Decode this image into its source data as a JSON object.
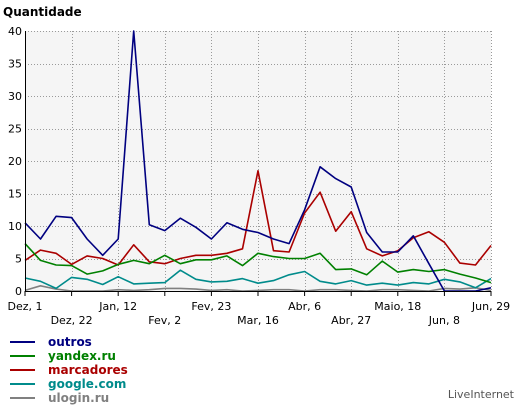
{
  "chart_data": {
    "type": "line",
    "title": "Quantidade",
    "ylim": [
      0,
      40
    ],
    "yticks": [
      0,
      5,
      10,
      15,
      20,
      25,
      30,
      35,
      40
    ],
    "x_tick_labels": [
      {
        "label": "Dez, 1",
        "index": 0,
        "row": 1
      },
      {
        "label": "Dez, 22",
        "index": 3,
        "row": 2
      },
      {
        "label": "Jan, 12",
        "index": 6,
        "row": 1
      },
      {
        "label": "Fev, 2",
        "index": 9,
        "row": 2
      },
      {
        "label": "Fev, 23",
        "index": 12,
        "row": 1
      },
      {
        "label": "Mar, 16",
        "index": 15,
        "row": 2
      },
      {
        "label": "Abr, 6",
        "index": 18,
        "row": 1
      },
      {
        "label": "Abr, 27",
        "index": 21,
        "row": 2
      },
      {
        "label": "Maio, 18",
        "index": 24,
        "row": 1
      },
      {
        "label": "Jun, 8",
        "index": 27,
        "row": 2
      },
      {
        "label": "Jun, 29",
        "index": 30,
        "row": 1
      }
    ],
    "grid": true,
    "series": [
      {
        "name": "outros",
        "color": "#000080",
        "values": [
          10.5,
          8,
          11.5,
          11.3,
          8,
          5.5,
          8,
          40,
          10.2,
          9.3,
          11.2,
          9.8,
          8,
          10.5,
          9.5,
          9,
          8,
          7.3,
          12.5,
          19.1,
          17.3,
          16,
          9,
          6,
          6,
          8.5,
          4.2,
          0,
          0,
          0,
          0.5
        ]
      },
      {
        "name": "yandex.ru",
        "color": "#008000",
        "values": [
          7.3,
          4.7,
          4,
          3.9,
          2.6,
          3.1,
          4.1,
          4.7,
          4.2,
          5.5,
          4.2,
          4.8,
          4.8,
          5.4,
          3.9,
          5.8,
          5.3,
          5,
          5,
          5.8,
          3.3,
          3.4,
          2.5,
          4.6,
          2.9,
          3.3,
          3,
          3.3,
          2.6,
          2,
          1.3
        ]
      },
      {
        "name": "marcadores",
        "color": "#aa0000",
        "values": [
          4.7,
          6.3,
          5.8,
          4.1,
          5.4,
          5,
          4,
          7.1,
          4.5,
          4.2,
          5,
          5.5,
          5.5,
          5.8,
          6.5,
          18.5,
          6.2,
          6,
          12,
          15.2,
          9.2,
          12.2,
          6.5,
          5.4,
          6.2,
          8.2,
          9.1,
          7.5,
          4.3,
          4,
          7
        ]
      },
      {
        "name": "google.com",
        "color": "#008b8b",
        "values": [
          2,
          1.5,
          0.4,
          2.1,
          1.8,
          1,
          2.2,
          1.1,
          1.2,
          1.3,
          3.2,
          1.8,
          1.4,
          1.5,
          1.9,
          1.2,
          1.6,
          2.5,
          3,
          1.5,
          1.1,
          1.6,
          0.9,
          1.2,
          0.9,
          1.3,
          1.1,
          1.8,
          1.4,
          0.5,
          1.9
        ]
      },
      {
        "name": "ulogin.ru",
        "color": "#808080",
        "values": [
          0.1,
          0.8,
          0.3,
          0,
          0,
          0,
          0.2,
          0.1,
          0.2,
          0.4,
          0.4,
          0.3,
          0.1,
          0.2,
          0,
          0.1,
          0.2,
          0.2,
          0,
          0.2,
          0.2,
          0.1,
          0,
          0.2,
          0.2,
          0.1,
          0,
          0.4,
          0.3,
          0.5,
          0.1
        ]
      }
    ]
  },
  "watermark": "LiveInternet"
}
